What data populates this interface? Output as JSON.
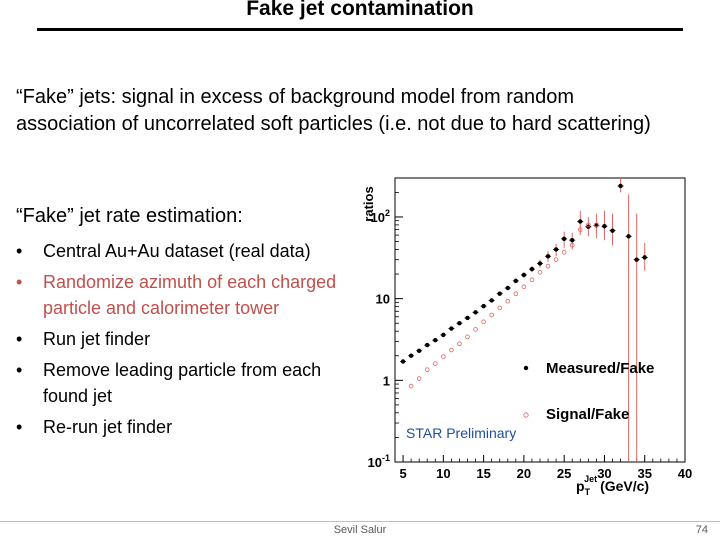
{
  "slide": {
    "title": "Fake jet contamination",
    "intro": "“Fake” jets: signal in excess of background model from random association of uncorrelated soft particles (i.e. not due to hard scattering)",
    "subhead": "“Fake” jet rate estimation:",
    "bullets": [
      {
        "text": "Central Au+Au dataset (real data)",
        "color": "black"
      },
      {
        "text": "Randomize azimuth of each charged particle and calorimeter tower",
        "color": "#c0504d"
      },
      {
        "text": "Run jet finder",
        "color": "black"
      },
      {
        "text": "Remove leading particle from each found jet",
        "color": "black"
      },
      {
        "text": "Re-run jet finder",
        "color": "black"
      }
    ],
    "bullet_glyph": "•",
    "footer_author": "Sevil Salur",
    "page_number": "74"
  },
  "chart_data": {
    "type": "scatter",
    "ylabel": "ratios",
    "xlabel_main": "p",
    "xlabel_sub": "T",
    "xlabel_sup": "Jet",
    "xlabel_unit": "(GeV/c)",
    "yscale": "log",
    "ylim": [
      0.1,
      300
    ],
    "xlim": [
      4,
      40
    ],
    "xticks": [
      5,
      10,
      15,
      20,
      25,
      30,
      35,
      40
    ],
    "yticks": [
      {
        "value": 0.1,
        "base": "10",
        "exp": "-1"
      },
      {
        "value": 1,
        "base": "1",
        "exp": ""
      },
      {
        "value": 10,
        "base": "10",
        "exp": ""
      },
      {
        "value": 100,
        "base": "10",
        "exp": "2"
      }
    ],
    "annotation": "STAR Preliminary",
    "legend_placement": "lower-right",
    "series": [
      {
        "name": "Measured/Fake",
        "marker": "filled-circle",
        "color": "#000000",
        "errcolor": "#e06666",
        "x": [
          5,
          6,
          7,
          8,
          9,
          10,
          11,
          12,
          13,
          14,
          15,
          16,
          17,
          18,
          19,
          20,
          21,
          22,
          23,
          24,
          25,
          26,
          27,
          28,
          29,
          30,
          31,
          32,
          33,
          34,
          35
        ],
        "y": [
          1.7,
          2.0,
          2.3,
          2.7,
          3.1,
          3.6,
          4.3,
          5.0,
          5.8,
          6.8,
          8.1,
          9.5,
          11.5,
          13.5,
          16.5,
          19.5,
          23,
          27,
          33,
          40,
          54,
          52,
          88,
          76,
          79,
          77,
          68,
          240,
          58,
          30,
          32
        ],
        "err_lo": [
          1.7,
          2.0,
          2.3,
          2.7,
          3.1,
          3.6,
          4.3,
          5.0,
          5.8,
          6.8,
          8.0,
          9.2,
          11,
          13,
          15.5,
          18,
          21,
          24,
          28,
          33,
          42,
          40,
          60,
          58,
          55,
          52,
          45,
          200,
          0.1,
          0.1,
          22
        ],
        "err_hi": [
          1.7,
          2.0,
          2.3,
          2.7,
          3.1,
          3.6,
          4.3,
          5.0,
          5.8,
          6.8,
          8.2,
          9.8,
          12,
          14,
          17.5,
          21,
          25,
          30,
          38,
          47,
          66,
          64,
          120,
          100,
          110,
          120,
          110,
          300,
          190,
          110,
          48
        ]
      },
      {
        "name": "Signal/Fake",
        "marker": "open-circle",
        "color": "#e06666",
        "x": [
          6,
          7,
          8,
          9,
          10,
          11,
          12,
          13,
          14,
          15,
          16,
          17,
          18,
          19,
          20,
          21,
          22,
          23,
          24,
          25,
          26,
          27,
          28,
          29
        ],
        "y": [
          0.85,
          1.05,
          1.35,
          1.6,
          1.95,
          2.35,
          2.8,
          3.4,
          4.2,
          5.2,
          6.3,
          7.7,
          9.3,
          11.5,
          14,
          17,
          21,
          25,
          30,
          37,
          45,
          70,
          80,
          80
        ],
        "err_lo": [
          0.85,
          1.05,
          1.35,
          1.6,
          1.95,
          2.35,
          2.8,
          3.4,
          4.2,
          5.2,
          6.3,
          7.7,
          9.3,
          11.5,
          14,
          17,
          21,
          25,
          30,
          37,
          45,
          70,
          80,
          80
        ],
        "err_hi": [
          0.85,
          1.05,
          1.35,
          1.6,
          1.95,
          2.35,
          2.8,
          3.4,
          4.2,
          5.2,
          6.3,
          7.7,
          9.3,
          11.5,
          14,
          17,
          21,
          25,
          30,
          37,
          45,
          70,
          80,
          80
        ]
      }
    ]
  }
}
